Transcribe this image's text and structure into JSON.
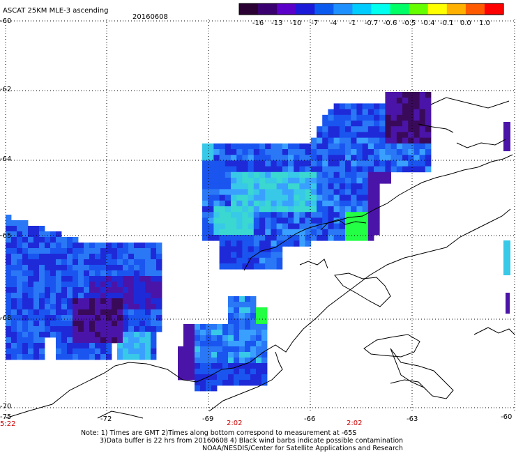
{
  "header": {
    "product": "ASCAT 25KM MLE-3 ascending",
    "date": "20160608"
  },
  "colorbar": {
    "labels": [
      "-16",
      "-13",
      "-10",
      "-7",
      "-4",
      "-1",
      "-0.7",
      "-0.6",
      "-0.5",
      "-0.4",
      "-0.1",
      "0.0",
      "1.0"
    ],
    "colors": [
      "#2b0033",
      "#3b0070",
      "#5a00c8",
      "#1a1ad8",
      "#0b5af0",
      "#1e90ff",
      "#00ccff",
      "#00ffee",
      "#00ff66",
      "#66ff00",
      "#ffff00",
      "#ffb000",
      "#ff5a00",
      "#ff0000"
    ]
  },
  "axes": {
    "lon_labels": [
      "-75",
      "-72",
      "-69",
      "-66",
      "-63",
      "-60"
    ],
    "lat_labels": [
      "-60",
      "-62",
      "-64",
      "-65",
      "-68",
      "-70"
    ]
  },
  "times": [
    "5:22",
    "2:02",
    "2:02"
  ],
  "notes": [
    "Note: 1) Times are GMT 2)Times along bottom correspond to measurement at -65S",
    "3)Data buffer is 22 hrs from 20160608 4) Black wind barbs indicate possible contamination",
    "NOAA/NESDIS/Center for Satellite Applications and Research"
  ]
}
